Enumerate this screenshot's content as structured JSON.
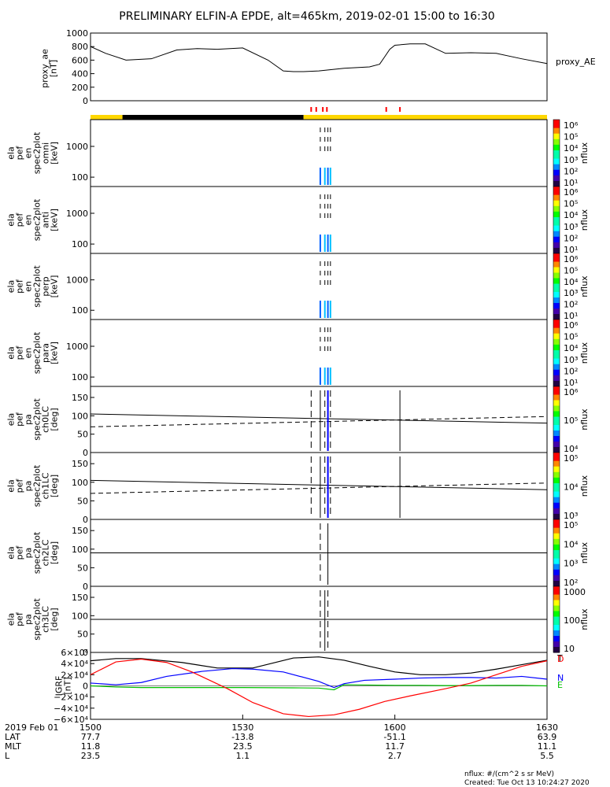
{
  "title": "PRELIMINARY ELFIN-A EPDE, alt=465km, 2019-02-01 15:00 to 16:30",
  "colors": {
    "bar_yellow": "#ffd700",
    "bar_black": "#000000",
    "event_red": "#ff0000",
    "n_comp": "#0000ff",
    "e_comp": "#00c000",
    "d_comp": "#ff0000",
    "total": "#000000"
  },
  "colorbar_labels": {
    "unit": "nflux",
    "en": [
      "10⁶",
      "10⁵",
      "10⁴",
      "10³",
      "10²",
      "10¹"
    ],
    "pa_ch0": [
      "10⁶",
      "10⁵",
      "10⁴"
    ],
    "pa_ch1": [
      "10⁵",
      "10⁴",
      "10³"
    ],
    "pa_ch2": [
      "10⁵",
      "10⁴",
      "10³",
      "10²"
    ],
    "pa_ch3": [
      "1000",
      "100",
      "10"
    ]
  },
  "chart_data": [
    {
      "type": "line",
      "panel": "proxy_ae",
      "ylabel_lines": [
        "proxy_ae",
        "[nT]"
      ],
      "legend": "proxy_AE",
      "ylim": [
        0,
        1000
      ],
      "yticks": [
        0,
        200,
        400,
        600,
        800,
        1000
      ],
      "x": [
        0,
        3,
        7,
        12,
        17,
        21,
        25,
        30,
        35,
        38,
        40,
        42,
        45,
        50,
        55,
        57,
        58,
        59,
        60,
        63,
        66,
        70,
        75,
        80,
        85,
        90
      ],
      "values": [
        800,
        700,
        600,
        620,
        750,
        770,
        760,
        780,
        600,
        440,
        430,
        430,
        440,
        480,
        500,
        540,
        650,
        760,
        820,
        840,
        840,
        700,
        710,
        700,
        620,
        550
      ],
      "event_ticks_x": [
        43.5,
        44.5,
        45.8,
        46.6,
        58.3,
        61
      ]
    },
    {
      "type": "heatmap",
      "panel": "en_omni",
      "ylabel_lines": [
        "ela",
        "pef",
        "en",
        "spec2plot",
        "omni",
        "[keV]"
      ],
      "yscale": "log",
      "yticks": [
        "100",
        "1000"
      ],
      "active_x": [
        45.3,
        46.2,
        46.8,
        47.3
      ],
      "colorbar": "en"
    },
    {
      "type": "heatmap",
      "panel": "en_anti",
      "ylabel_lines": [
        "ela",
        "pef",
        "en",
        "spec2plot",
        "anti",
        "[keV]"
      ],
      "yscale": "log",
      "yticks": [
        "100",
        "1000"
      ],
      "active_x": [
        45.3,
        46.2,
        46.8,
        47.3
      ],
      "colorbar": "en"
    },
    {
      "type": "heatmap",
      "panel": "en_perp",
      "ylabel_lines": [
        "ela",
        "pef",
        "en",
        "spec2plot",
        "perp",
        "[keV]"
      ],
      "yscale": "log",
      "yticks": [
        "100",
        "1000"
      ],
      "active_x": [
        45.3,
        46.2,
        46.8,
        47.3
      ],
      "colorbar": "en"
    },
    {
      "type": "heatmap",
      "panel": "en_para",
      "ylabel_lines": [
        "ela",
        "pef",
        "en",
        "spec2plot",
        "para",
        "[keV]"
      ],
      "yscale": "log",
      "yticks": [
        "100",
        "1000"
      ],
      "active_x": [
        45.3,
        46.2,
        46.8,
        47.3
      ],
      "colorbar": "en"
    },
    {
      "type": "heatmap",
      "panel": "pa_ch0",
      "ylabel_lines": [
        "ela",
        "pef",
        "pa",
        "spec2plot",
        "ch0LC",
        "[deg]"
      ],
      "ylim": [
        0,
        180
      ],
      "yticks": [
        0,
        50,
        100,
        150
      ],
      "lc_solid": {
        "x": [
          0,
          90
        ],
        "values": [
          105,
          80
        ]
      },
      "lc_dashed": {
        "x": [
          0,
          90
        ],
        "values": [
          70,
          98
        ]
      },
      "active_x": [
        43.5,
        45.3,
        46.2,
        46.8,
        47.3,
        61
      ],
      "colorbar": "pa_ch0"
    },
    {
      "type": "heatmap",
      "panel": "pa_ch1",
      "ylabel_lines": [
        "ela",
        "pef",
        "pa",
        "spec2plot",
        "ch1LC",
        "[deg]"
      ],
      "ylim": [
        0,
        180
      ],
      "yticks": [
        0,
        50,
        100,
        150
      ],
      "lc_solid": {
        "x": [
          0,
          90
        ],
        "values": [
          105,
          80
        ]
      },
      "lc_dashed": {
        "x": [
          0,
          90
        ],
        "values": [
          70,
          98
        ]
      },
      "active_x": [
        43.5,
        45.3,
        46.2,
        46.8,
        47.3,
        61
      ],
      "colorbar": "pa_ch1"
    },
    {
      "type": "heatmap",
      "panel": "pa_ch2",
      "ylabel_lines": [
        "ela",
        "pef",
        "pa",
        "spec2plot",
        "ch2LC",
        "[deg]"
      ],
      "ylim": [
        0,
        180
      ],
      "yticks": [
        0,
        50,
        100,
        150
      ],
      "active_x": [
        45.3,
        46.8
      ],
      "colorbar": "pa_ch2"
    },
    {
      "type": "heatmap",
      "panel": "pa_ch3",
      "ylabel_lines": [
        "ela",
        "pef",
        "pa",
        "spec2plot",
        "ch3LC",
        "[deg]"
      ],
      "ylim": [
        0,
        180
      ],
      "yticks": [
        0,
        50,
        100,
        150
      ],
      "active_x": [
        45.3,
        46.2,
        46.8
      ],
      "colorbar": "pa_ch3"
    },
    {
      "type": "line",
      "panel": "igrf",
      "ylabel_lines": [
        "IGRF",
        "[nT]"
      ],
      "ylim": [
        -60000,
        60000
      ],
      "yticks": [
        "6×10⁴",
        "4×10⁴",
        "2×10⁴",
        "0",
        "−2×10⁴",
        "−4×10⁴",
        "−6×10⁴"
      ],
      "ytick_values": [
        60000,
        40000,
        20000,
        0,
        -20000,
        -40000,
        -60000
      ],
      "series": [
        {
          "name": "T",
          "color": "#000000",
          "x": [
            0,
            5,
            10,
            18,
            25,
            32,
            40,
            45,
            50,
            55,
            60,
            65,
            70,
            75,
            80,
            85,
            90
          ],
          "values": [
            45000,
            49000,
            49000,
            42000,
            32000,
            32000,
            50000,
            52000,
            46000,
            35000,
            25000,
            20000,
            20000,
            23000,
            30000,
            38000,
            46000
          ]
        },
        {
          "name": "N",
          "color": "#0000ff",
          "x": [
            0,
            5,
            10,
            15,
            22,
            28,
            32,
            38,
            45,
            48,
            50,
            54,
            60,
            65,
            70,
            75,
            80,
            85,
            90
          ],
          "values": [
            5000,
            2000,
            6000,
            17000,
            26000,
            31000,
            30000,
            25000,
            8000,
            -3000,
            4000,
            10000,
            12000,
            14000,
            15000,
            15000,
            14000,
            17000,
            12000
          ]
        },
        {
          "name": "E",
          "color": "#00c000",
          "x": [
            0,
            5,
            10,
            20,
            30,
            40,
            45,
            48,
            50,
            55,
            60,
            65,
            70,
            75,
            80,
            85,
            90
          ],
          "values": [
            0,
            -2000,
            -3000,
            -3000,
            -3000,
            -3500,
            -4000,
            -7000,
            2000,
            1500,
            1000,
            1000,
            500,
            500,
            1000,
            1000,
            0
          ]
        },
        {
          "name": "D",
          "color": "#ff0000",
          "x": [
            0,
            5,
            10,
            15,
            20,
            27,
            32,
            38,
            43,
            48,
            53,
            58,
            63,
            70,
            75,
            80,
            85,
            90
          ],
          "values": [
            20000,
            43000,
            48000,
            42000,
            25000,
            -5000,
            -30000,
            -50000,
            -55000,
            -52000,
            -42000,
            -28000,
            -18000,
            -5000,
            5000,
            20000,
            35000,
            45000
          ]
        }
      ]
    }
  ],
  "axis": {
    "date_label": "2019 Feb 01",
    "rows": [
      "LAT",
      "MLT",
      "L"
    ],
    "x_ticks": [
      {
        "x": 0,
        "time": "1500",
        "lat": "77.7",
        "mlt": "11.8",
        "l": "23.5"
      },
      {
        "x": 30,
        "time": "1530",
        "lat": "-13.8",
        "mlt": "23.5",
        "l": "1.1"
      },
      {
        "x": 60,
        "time": "1600",
        "lat": "-51.1",
        "mlt": "11.7",
        "l": "2.7"
      },
      {
        "x": 90,
        "time": "1630",
        "lat": "63.9",
        "mlt": "11.1",
        "l": "5.5"
      }
    ]
  },
  "footer": {
    "units": "nflux: #/(cm^2 s sr MeV)",
    "created": "Created: Tue Oct 13 10:24:27 2020"
  }
}
